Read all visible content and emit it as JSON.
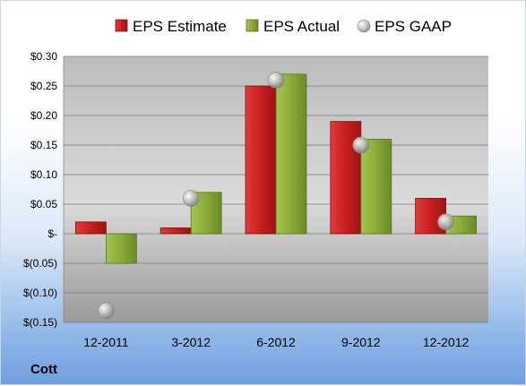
{
  "company": "Cott",
  "chart_data": {
    "type": "bar",
    "categories": [
      "12-2011",
      "3-2012",
      "6-2012",
      "9-2012",
      "12-2012"
    ],
    "series": [
      {
        "name": "EPS Estimate",
        "kind": "bar",
        "color": "#d42a2a",
        "values": [
          0.02,
          0.01,
          0.25,
          0.19,
          0.06
        ]
      },
      {
        "name": "EPS Actual",
        "kind": "bar",
        "color": "#8fb03c",
        "values": [
          -0.05,
          0.07,
          0.27,
          0.16,
          0.03
        ]
      },
      {
        "name": "EPS GAAP",
        "kind": "marker",
        "color": "#b8b8b8",
        "values": [
          -0.13,
          0.06,
          0.26,
          0.15,
          0.02
        ]
      }
    ],
    "ylim": [
      -0.15,
      0.3
    ],
    "yticks": [
      -0.15,
      -0.1,
      -0.05,
      0,
      0.05,
      0.1,
      0.15,
      0.2,
      0.25,
      0.3
    ],
    "ytick_labels": [
      "$(0.15)",
      "$(0.10)",
      "$(0.05)",
      "$-",
      "$0.05",
      "$0.10",
      "$0.15",
      "$0.20",
      "$0.25",
      "$0.30"
    ],
    "legend_position": "top",
    "grid": true
  }
}
